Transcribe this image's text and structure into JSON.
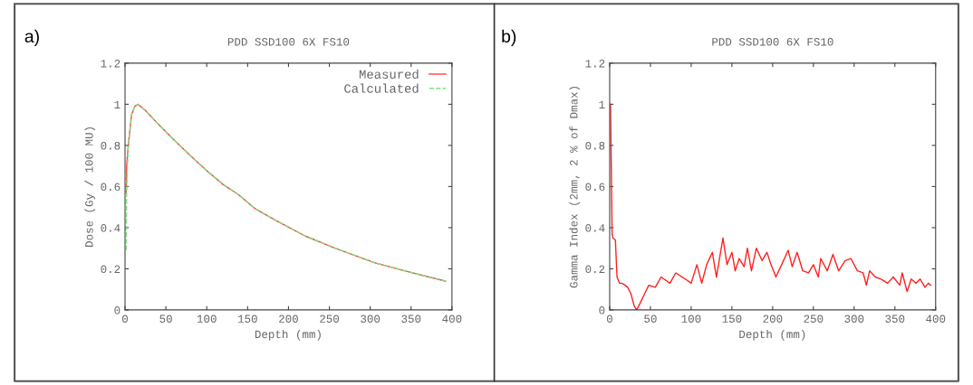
{
  "chart_data": [
    {
      "type": "line",
      "title": "PDD SSD100 6X FS10",
      "xlabel": "Depth (mm)",
      "ylabel": "Dose (Gy / 100 MU)",
      "annotations": [
        "a)"
      ],
      "xlim": [
        0,
        400
      ],
      "xticks": [
        0,
        50,
        100,
        150,
        200,
        250,
        300,
        350,
        400
      ],
      "ylim": [
        0,
        1.2
      ],
      "yticks": [
        0,
        0.2,
        0.4,
        0.6,
        0.8,
        1,
        1.2
      ],
      "grid": false,
      "legend": "top right",
      "line_style": "solid",
      "marker": "none",
      "series": [
        {
          "name": "Measured",
          "color": "#ff4040",
          "x": [
            1.5,
            2,
            4,
            8,
            12,
            16,
            25,
            39,
            59,
            80,
            102,
            120,
            139,
            160,
            187,
            220,
            257,
            305,
            342,
            392
          ],
          "values": [
            0.57,
            0.7,
            0.8,
            0.95,
            0.99,
            1.0,
            0.97,
            0.91,
            0.83,
            0.75,
            0.67,
            0.61,
            0.56,
            0.49,
            0.43,
            0.36,
            0.3,
            0.23,
            0.19,
            0.14
          ]
        },
        {
          "name": "Calculated",
          "color": "#80e080",
          "line_style": "dashed",
          "x": [
            1.5,
            2,
            4,
            8,
            12,
            16,
            25,
            39,
            59,
            80,
            102,
            120,
            139,
            160,
            187,
            220,
            257,
            305,
            342,
            392
          ],
          "values": [
            0.29,
            0.6,
            0.8,
            0.95,
            0.99,
            1.0,
            0.97,
            0.91,
            0.83,
            0.75,
            0.67,
            0.61,
            0.56,
            0.49,
            0.43,
            0.36,
            0.3,
            0.23,
            0.19,
            0.14
          ]
        }
      ]
    },
    {
      "type": "line",
      "title": "PDD SSD100 6X FS10",
      "xlabel": "Depth (mm)",
      "ylabel": "Gamma Index (2mm, 2 % of Dmax)",
      "annotations": [
        "b)"
      ],
      "xlim": [
        0,
        400
      ],
      "xticks": [
        0,
        50,
        100,
        150,
        200,
        250,
        300,
        350,
        400
      ],
      "ylim": [
        0,
        1.2
      ],
      "yticks": [
        0,
        0.2,
        0.4,
        0.6,
        0.8,
        1,
        1.2
      ],
      "grid": false,
      "legend": false,
      "line_style": "solid",
      "marker": "none",
      "series": [
        {
          "color": "#ff2020",
          "x": [
            1,
            3,
            4,
            7,
            9,
            12,
            15,
            19,
            22,
            26,
            30,
            33,
            37,
            43,
            48,
            56,
            63,
            74,
            81,
            93,
            100,
            107,
            113,
            119,
            126,
            131,
            139,
            144,
            150,
            154,
            159,
            165,
            169,
            174,
            180,
            187,
            193,
            198,
            204,
            211,
            219,
            224,
            230,
            237,
            244,
            250,
            256,
            259,
            267,
            274,
            281,
            289,
            296,
            304,
            311,
            315,
            319,
            326,
            333,
            341,
            348,
            356,
            359,
            365,
            370,
            376,
            381,
            387,
            391,
            394
          ],
          "values": [
            1.0,
            0.37,
            0.35,
            0.34,
            0.16,
            0.13,
            0.13,
            0.12,
            0.11,
            0.08,
            0.02,
            0.0,
            0.03,
            0.08,
            0.12,
            0.11,
            0.16,
            0.13,
            0.18,
            0.15,
            0.13,
            0.22,
            0.13,
            0.22,
            0.28,
            0.16,
            0.35,
            0.22,
            0.28,
            0.19,
            0.25,
            0.21,
            0.3,
            0.19,
            0.3,
            0.24,
            0.28,
            0.22,
            0.16,
            0.22,
            0.29,
            0.21,
            0.28,
            0.19,
            0.18,
            0.22,
            0.16,
            0.25,
            0.19,
            0.27,
            0.19,
            0.24,
            0.25,
            0.19,
            0.18,
            0.12,
            0.19,
            0.16,
            0.15,
            0.13,
            0.16,
            0.12,
            0.18,
            0.09,
            0.15,
            0.13,
            0.15,
            0.11,
            0.13,
            0.12
          ]
        }
      ]
    }
  ]
}
